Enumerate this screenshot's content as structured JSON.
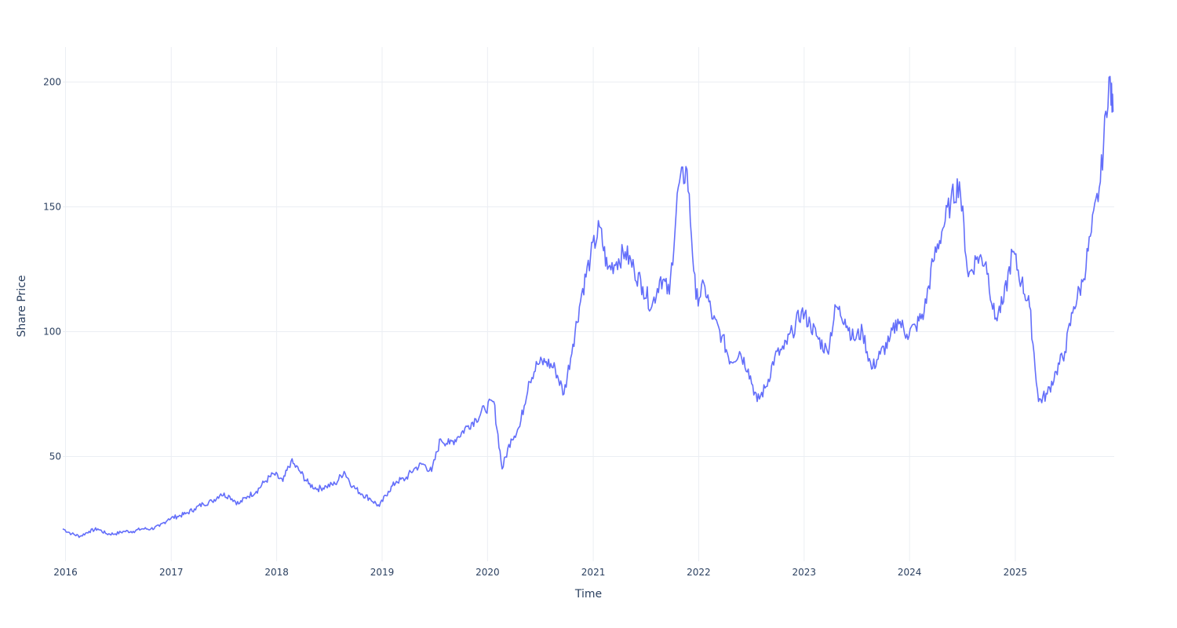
{
  "chart_data": {
    "type": "line",
    "title": "",
    "xlabel": "Time",
    "ylabel": "Share Price",
    "x_tick_labels": [
      "2016",
      "2017",
      "2018",
      "2019",
      "2020",
      "2021",
      "2022",
      "2023",
      "2024",
      "2025"
    ],
    "y_tick_labels": [
      "50",
      "100",
      "150",
      "200"
    ],
    "y_ticks": [
      50,
      100,
      150,
      200
    ],
    "xlim": [
      "2016-01-01",
      "2025-12-19"
    ],
    "ylim": [
      8,
      214
    ],
    "grid": true,
    "legend": "none",
    "line_color": "#636efa",
    "series": [
      {
        "x": [
          "2016-01-01",
          "2016-02-01",
          "2016-03-01",
          "2016-04-01",
          "2016-05-01",
          "2016-06-01",
          "2016-07-01",
          "2016-08-01",
          "2016-09-01",
          "2016-10-01",
          "2016-11-01",
          "2016-12-01",
          "2017-01-01",
          "2017-02-01",
          "2017-03-01",
          "2017-04-01",
          "2017-05-01",
          "2017-06-01",
          "2017-07-01",
          "2017-08-01",
          "2017-09-01",
          "2017-10-01",
          "2017-11-01",
          "2017-12-01",
          "2018-01-01",
          "2018-02-01",
          "2018-03-01",
          "2018-04-01",
          "2018-05-01",
          "2018-06-01",
          "2018-07-01",
          "2018-08-01",
          "2018-09-01",
          "2018-10-01",
          "2018-11-01",
          "2018-12-01",
          "2019-01-01",
          "2019-02-01",
          "2019-03-01",
          "2019-04-01",
          "2019-05-01",
          "2019-06-01",
          "2019-07-01",
          "2019-08-01",
          "2019-09-01",
          "2019-10-01",
          "2019-11-01",
          "2019-12-01",
          "2020-01-01",
          "2020-02-01",
          "2020-03-01",
          "2020-04-01",
          "2020-05-01",
          "2020-06-01",
          "2020-07-01",
          "2020-08-01",
          "2020-09-01",
          "2020-10-01",
          "2020-11-01",
          "2020-12-01",
          "2021-01-01",
          "2021-02-01",
          "2021-03-01",
          "2021-04-01",
          "2021-05-01",
          "2021-06-01",
          "2021-07-01",
          "2021-08-01",
          "2021-09-01",
          "2021-10-01",
          "2021-11-01",
          "2021-12-01",
          "2022-01-01",
          "2022-02-01",
          "2022-03-01",
          "2022-04-01",
          "2022-05-01",
          "2022-06-01",
          "2022-07-01",
          "2022-08-01",
          "2022-09-01",
          "2022-10-01",
          "2022-11-01",
          "2022-12-01",
          "2023-01-01",
          "2023-02-01",
          "2023-03-01",
          "2023-04-01",
          "2023-05-01",
          "2023-06-01",
          "2023-07-01",
          "2023-08-01",
          "2023-09-01",
          "2023-10-01",
          "2023-11-01",
          "2023-12-01",
          "2024-01-01",
          "2024-02-01",
          "2024-03-01",
          "2024-04-01",
          "2024-05-01",
          "2024-06-01",
          "2024-07-01",
          "2024-08-01",
          "2024-09-01",
          "2024-10-01",
          "2024-11-01",
          "2024-12-01",
          "2025-01-01",
          "2025-02-01",
          "2025-03-01",
          "2025-04-01",
          "2025-05-01",
          "2025-06-01",
          "2025-07-01",
          "2025-08-01",
          "2025-09-01",
          "2025-10-01",
          "2025-11-01",
          "2025-12-01",
          "2025-12-15"
        ],
        "y": [
          21,
          19,
          18,
          20,
          21,
          19,
          19,
          20,
          20,
          21,
          21,
          22,
          25,
          26,
          27,
          29,
          31,
          32,
          35,
          34,
          31,
          34,
          36,
          40,
          43,
          40,
          48,
          44,
          39,
          37,
          38,
          39,
          44,
          38,
          35,
          33,
          30,
          36,
          40,
          41,
          45,
          47,
          44,
          57,
          55,
          58,
          62,
          65,
          69,
          72,
          45,
          57,
          62,
          80,
          87,
          88,
          85,
          75,
          95,
          115,
          130,
          142,
          125,
          128,
          132,
          125,
          118,
          110,
          122,
          115,
          158,
          165,
          113,
          118,
          105,
          98,
          88,
          92,
          85,
          72,
          78,
          90,
          93,
          100,
          108,
          103,
          97,
          92,
          110,
          105,
          97,
          100,
          85,
          91,
          96,
          105,
          99,
          102,
          108,
          128,
          140,
          152,
          160,
          122,
          130,
          128,
          105,
          112,
          132,
          120,
          110,
          72,
          75,
          84,
          92,
          110,
          120,
          140,
          160,
          202,
          188
        ]
      }
    ]
  }
}
